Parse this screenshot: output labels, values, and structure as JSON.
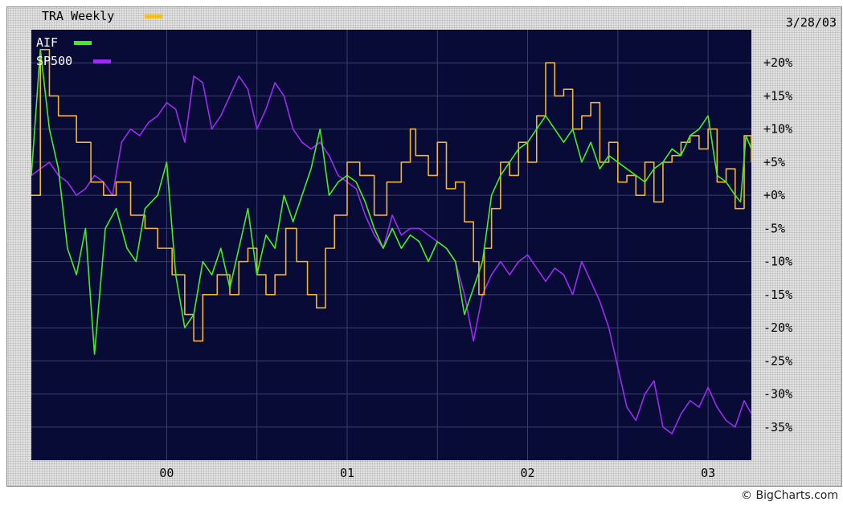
{
  "header": {
    "title": "TRA Weekly",
    "date": "3/28/03"
  },
  "credit": "© BigCharts.com",
  "colors": {
    "plot_bg": "#070b35",
    "grid": "#3c3f6e",
    "TRA Weekly": "#f2b431",
    "AIF": "#44ee22",
    "SP500": "#9b2cf0"
  },
  "chart_data": {
    "type": "line",
    "title": "TRA Weekly",
    "date_label": "3/28/03",
    "x_unit": "year",
    "xlim": [
      1999.25,
      2003.24
    ],
    "ylim": [
      -40,
      25
    ],
    "x_ticks": [
      {
        "label": "00",
        "value": 2000.0
      },
      {
        "label": "01",
        "value": 2001.0
      },
      {
        "label": "02",
        "value": 2002.0
      },
      {
        "label": "03",
        "value": 2003.0
      }
    ],
    "y_ticks": [
      {
        "label": "+20%",
        "value": 20
      },
      {
        "label": "+15%",
        "value": 15
      },
      {
        "label": "+10%",
        "value": 10
      },
      {
        "label": "+5%",
        "value": 5
      },
      {
        "label": "+0%",
        "value": 0
      },
      {
        "label": "-5%",
        "value": -5
      },
      {
        "label": "-10%",
        "value": -10
      },
      {
        "label": "-15%",
        "value": -15
      },
      {
        "label": "-20%",
        "value": -20
      },
      {
        "label": "-25%",
        "value": -25
      },
      {
        "label": "-30%",
        "value": -30
      },
      {
        "label": "-35%",
        "value": -35
      }
    ],
    "grid": true,
    "legend": "top-left",
    "series": [
      {
        "name": "TRA Weekly",
        "style": "step",
        "x": [
          1999.25,
          1999.3,
          1999.35,
          1999.4,
          1999.5,
          1999.58,
          1999.65,
          1999.72,
          1999.8,
          1999.88,
          1999.95,
          2000.03,
          2000.1,
          2000.15,
          2000.2,
          2000.28,
          2000.35,
          2000.4,
          2000.45,
          2000.5,
          2000.55,
          2000.6,
          2000.66,
          2000.72,
          2000.78,
          2000.83,
          2000.88,
          2000.93,
          2001.0,
          2001.07,
          2001.15,
          2001.22,
          2001.3,
          2001.35,
          2001.38,
          2001.45,
          2001.5,
          2001.55,
          2001.6,
          2001.65,
          2001.7,
          2001.73,
          2001.76,
          2001.8,
          2001.85,
          2001.9,
          2001.95,
          2002.0,
          2002.05,
          2002.1,
          2002.15,
          2002.2,
          2002.25,
          2002.3,
          2002.35,
          2002.4,
          2002.45,
          2002.5,
          2002.55,
          2002.6,
          2002.65,
          2002.7,
          2002.75,
          2002.8,
          2002.85,
          2002.9,
          2002.95,
          2003.0,
          2003.05,
          2003.1,
          2003.15,
          2003.2,
          2003.24
        ],
        "values": [
          0,
          22,
          15,
          12,
          8,
          2,
          0,
          2,
          -3,
          -5,
          -8,
          -12,
          -18,
          -22,
          -15,
          -12,
          -15,
          -10,
          -8,
          -12,
          -15,
          -12,
          -5,
          -10,
          -15,
          -17,
          -8,
          -3,
          5,
          3,
          -3,
          2,
          5,
          10,
          6,
          3,
          8,
          1,
          2,
          -4,
          -10,
          -15,
          -8,
          -2,
          5,
          3,
          8,
          5,
          12,
          20,
          15,
          16,
          10,
          12,
          14,
          5,
          8,
          2,
          3,
          0,
          5,
          -1,
          5,
          6,
          8,
          9,
          7,
          10,
          2,
          4,
          -2,
          9,
          5
        ]
      },
      {
        "name": "AIF",
        "style": "line",
        "x": [
          1999.25,
          1999.3,
          1999.35,
          1999.4,
          1999.45,
          1999.5,
          1999.55,
          1999.6,
          1999.66,
          1999.72,
          1999.78,
          1999.83,
          1999.88,
          1999.95,
          2000.0,
          2000.05,
          2000.1,
          2000.15,
          2000.2,
          2000.25,
          2000.3,
          2000.35,
          2000.4,
          2000.45,
          2000.5,
          2000.55,
          2000.6,
          2000.65,
          2000.7,
          2000.75,
          2000.8,
          2000.85,
          2000.9,
          2000.95,
          2001.0,
          2001.05,
          2001.1,
          2001.15,
          2001.2,
          2001.25,
          2001.3,
          2001.35,
          2001.4,
          2001.45,
          2001.5,
          2001.55,
          2001.6,
          2001.65,
          2001.7,
          2001.75,
          2001.8,
          2001.85,
          2001.9,
          2001.95,
          2002.0,
          2002.05,
          2002.1,
          2002.15,
          2002.2,
          2002.25,
          2002.3,
          2002.35,
          2002.4,
          2002.45,
          2002.5,
          2002.55,
          2002.6,
          2002.65,
          2002.7,
          2002.75,
          2002.8,
          2002.85,
          2002.9,
          2002.95,
          2003.0,
          2003.05,
          2003.1,
          2003.15,
          2003.18,
          2003.21,
          2003.24
        ],
        "values": [
          3,
          22,
          10,
          4,
          -8,
          -12,
          -5,
          -24,
          -5,
          -2,
          -8,
          -10,
          -2,
          0,
          5,
          -12,
          -20,
          -18,
          -10,
          -12,
          -8,
          -14,
          -8,
          -2,
          -12,
          -6,
          -8,
          0,
          -4,
          0,
          4,
          10,
          0,
          2,
          3,
          2,
          -1,
          -5,
          -8,
          -5,
          -8,
          -6,
          -7,
          -10,
          -7,
          -8,
          -10,
          -18,
          -14,
          -10,
          0,
          3,
          5,
          7,
          8,
          10,
          12,
          10,
          8,
          10,
          5,
          8,
          4,
          6,
          5,
          4,
          3,
          2,
          4,
          5,
          7,
          6,
          9,
          10,
          12,
          3,
          2,
          0,
          -1,
          9,
          7
        ]
      },
      {
        "name": "SP500",
        "style": "line",
        "x": [
          1999.25,
          1999.3,
          1999.35,
          1999.4,
          1999.45,
          1999.5,
          1999.55,
          1999.6,
          1999.65,
          1999.7,
          1999.75,
          1999.8,
          1999.85,
          1999.9,
          1999.95,
          2000.0,
          2000.05,
          2000.1,
          2000.15,
          2000.2,
          2000.25,
          2000.3,
          2000.35,
          2000.4,
          2000.45,
          2000.5,
          2000.55,
          2000.6,
          2000.65,
          2000.7,
          2000.75,
          2000.8,
          2000.85,
          2000.9,
          2000.95,
          2001.0,
          2001.05,
          2001.1,
          2001.15,
          2001.2,
          2001.25,
          2001.3,
          2001.35,
          2001.4,
          2001.45,
          2001.5,
          2001.55,
          2001.6,
          2001.65,
          2001.7,
          2001.75,
          2001.8,
          2001.85,
          2001.9,
          2001.95,
          2002.0,
          2002.05,
          2002.1,
          2002.15,
          2002.2,
          2002.25,
          2002.3,
          2002.35,
          2002.4,
          2002.45,
          2002.5,
          2002.55,
          2002.6,
          2002.65,
          2002.7,
          2002.75,
          2002.8,
          2002.85,
          2002.9,
          2002.95,
          2003.0,
          2003.05,
          2003.1,
          2003.15,
          2003.2,
          2003.24
        ],
        "values": [
          3,
          4,
          5,
          3,
          2,
          0,
          1,
          3,
          2,
          0,
          8,
          10,
          9,
          11,
          12,
          14,
          13,
          8,
          18,
          17,
          10,
          12,
          15,
          18,
          16,
          10,
          13,
          17,
          15,
          10,
          8,
          7,
          8,
          6,
          3,
          2,
          1,
          -3,
          -6,
          -8,
          -3,
          -6,
          -5,
          -5,
          -6,
          -7,
          -8,
          -10,
          -15,
          -22,
          -15,
          -12,
          -10,
          -12,
          -10,
          -9,
          -11,
          -13,
          -11,
          -12,
          -15,
          -10,
          -13,
          -16,
          -20,
          -26,
          -32,
          -34,
          -30,
          -28,
          -35,
          -36,
          -33,
          -31,
          -32,
          -29,
          -32,
          -34,
          -35,
          -31,
          -33
        ]
      }
    ]
  }
}
